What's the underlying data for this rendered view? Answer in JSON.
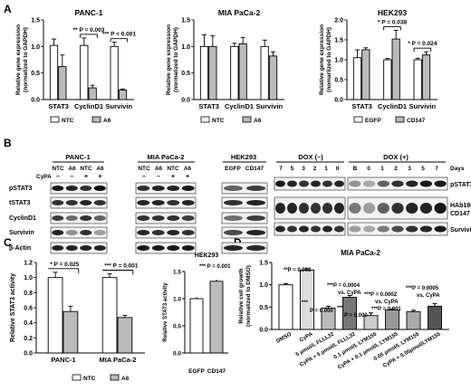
{
  "figure": {
    "panel_labels": [
      "A",
      "B",
      "C",
      "D"
    ]
  },
  "panelA": {
    "ylabel_lines": [
      "Relative gene expression",
      "(normalized to GAPDH)"
    ],
    "ylabel_lines_hek": [
      "Relative gene expression",
      "(nomarlized to GAPDH)"
    ],
    "charts": [
      {
        "title": "PANC-1",
        "categories": [
          "STAT3",
          "CyclinD1",
          "Survivin"
        ],
        "ylim": [
          0,
          1.5
        ],
        "yticks": [
          "0.0",
          "0.5",
          "1.0",
          "1.5"
        ],
        "legend": [
          "NTC",
          "A6"
        ],
        "legend_fills": [
          "#ffffff",
          "#bbbbbb"
        ],
        "series": [
          {
            "name": "NTC",
            "values": [
              1.02,
              1.02,
              1.0
            ],
            "errors": [
              0.12,
              0.14,
              0.08
            ],
            "fill": "#ffffff"
          },
          {
            "name": "A6",
            "values": [
              0.62,
              0.22,
              0.18
            ],
            "errors": [
              0.22,
              0.05,
              0.02
            ],
            "fill": "#bbbbbb"
          }
        ],
        "annotations": [
          {
            "stars": "**",
            "p": "P = 0.003",
            "cat": 1
          },
          {
            "stars": "***",
            "p": "P < 0.001",
            "cat": 2
          }
        ]
      },
      {
        "title": "MIA PaCa-2",
        "categories": [
          "STAT3",
          "CyclinD1",
          "Survivin"
        ],
        "ylim": [
          0,
          1.5
        ],
        "yticks": [
          "0.0",
          "0.5",
          "1.0",
          "1.5"
        ],
        "legend": [
          "NTC",
          "A6"
        ],
        "legend_fills": [
          "#ffffff",
          "#bbbbbb"
        ],
        "series": [
          {
            "name": "NTC",
            "values": [
              1.0,
              1.0,
              1.0
            ],
            "errors": [
              0.22,
              0.06,
              0.12
            ],
            "fill": "#ffffff"
          },
          {
            "name": "A6",
            "values": [
              1.0,
              1.05,
              0.82
            ],
            "errors": [
              0.2,
              0.12,
              0.08
            ],
            "fill": "#bbbbbb"
          }
        ],
        "annotations": []
      },
      {
        "title": "HEK293",
        "categories": [
          "STAT3",
          "CyclinD1",
          "Survivin"
        ],
        "ylim": [
          0,
          2.0
        ],
        "yticks": [
          "0.0",
          "0.5",
          "1.0",
          "1.5",
          "2.0"
        ],
        "legend": [
          "EGFP",
          "CD147"
        ],
        "legend_fills": [
          "#ffffff",
          "#bbbbbb"
        ],
        "series": [
          {
            "name": "EGFP",
            "values": [
              1.05,
              1.0,
              1.0
            ],
            "errors": [
              0.2,
              0.03,
              0.04
            ],
            "fill": "#ffffff"
          },
          {
            "name": "CD147",
            "values": [
              1.25,
              1.52,
              1.12
            ],
            "errors": [
              0.05,
              0.22,
              0.08
            ],
            "fill": "#bbbbbb"
          }
        ],
        "annotations": [
          {
            "stars": "*",
            "p": "P = 0.038",
            "cat": 1
          },
          {
            "stars": "*",
            "p": "P = 0.024",
            "cat": 2
          }
        ]
      }
    ]
  },
  "panelB": {
    "left_headers": [
      "PANC-1",
      "MIA PaCa-2",
      "HEK293"
    ],
    "lane_labels_panc": [
      "NTC",
      "A6",
      "NTC",
      "A6"
    ],
    "lane_labels_mia": [
      "NTC",
      "A6",
      "NTC",
      "A6"
    ],
    "cypa_label": "CyPA",
    "cypa_signs_panc": [
      "–",
      "–",
      "+",
      "+"
    ],
    "cypa_signs_mia": [
      "–",
      "–",
      "+",
      "+"
    ],
    "hek_lanes": [
      "EGFP",
      "CD147"
    ],
    "left_rows": [
      "pSTAT3",
      "tSTAT3",
      "CyclinD1",
      "Survivin",
      "β-Actin"
    ],
    "dox_neg": "DOX (–)",
    "dox_pos": "DOX (+)",
    "dox_neg_lanes": [
      "7",
      "5",
      "3",
      "2",
      "1",
      "0"
    ],
    "dox_pos_lanes": [
      "B",
      "0",
      "1",
      "2",
      "3",
      "5",
      "7"
    ],
    "days_label": "Days",
    "right_rows": [
      "pSTAT3",
      "HAb18G/",
      "CD147",
      "Survivin"
    ]
  },
  "panelC": {
    "ylabel": "Relative STAT3 activity",
    "chart_main": {
      "categories": [
        "PANC-1",
        "MIA PaCa-2"
      ],
      "ylim": [
        0,
        1.2
      ],
      "yticks": [
        "0.0",
        "0.2",
        "0.4",
        "0.6",
        "0.8",
        "1.0",
        "1.2"
      ],
      "legend": [
        "NTC",
        "A6"
      ],
      "legend_fills": [
        "#ffffff",
        "#bbbbbb"
      ],
      "series": [
        {
          "name": "NTC",
          "values": [
            1.0,
            1.0
          ],
          "errors": [
            0.07,
            0.05
          ],
          "fill": "#ffffff"
        },
        {
          "name": "A6",
          "values": [
            0.55,
            0.47
          ],
          "errors": [
            0.07,
            0.03
          ],
          "fill": "#bbbbbb"
        }
      ],
      "annotations": [
        {
          "stars": "*",
          "p": "P = 0.025"
        },
        {
          "stars": "***",
          "p": "P = 0.001"
        }
      ]
    },
    "chart_hek": {
      "title": "HEK293",
      "categories": [
        "EGFP",
        "CD147"
      ],
      "ylim": [
        0,
        1.5
      ],
      "yticks": [
        "0.0",
        "0.5",
        "1.0",
        "1.5"
      ],
      "values": [
        1.0,
        1.32
      ],
      "errors": [
        0.03,
        0.03
      ],
      "fills": [
        "#ffffff",
        "#bbbbbb"
      ],
      "annotation": "*** P = 0.001"
    }
  },
  "panelD": {
    "title": "MIA PaCa-2",
    "ylabel_lines": [
      "Relative cell growth",
      "(normalized to DMSO)"
    ],
    "ylim": [
      0,
      1.5
    ],
    "yticks": [
      "0.0",
      "0.5",
      "1.0",
      "1.5"
    ],
    "categories": [
      "DMSO",
      "CyPA",
      "5 μmol/L FLLL32",
      "CyPA + 5 μmol/L FLLL32",
      "0.1 μmol/L LYM155",
      "CyPA + 0.1 μmol/L LYM155",
      "0.05 μmol/L LYM155",
      "CyPA + 0.05μmol/LYM155"
    ],
    "values": [
      1.0,
      1.33,
      0.48,
      0.72,
      0.31,
      0.44,
      0.4,
      0.52
    ],
    "errors": [
      0.03,
      0.03,
      0.04,
      0.04,
      0.06,
      0.02,
      0.03,
      0.06
    ],
    "annotations": [
      {
        "text": "**P = 0.003"
      },
      {
        "text": "***"
      },
      {
        "text": "P = 0.000"
      },
      {
        "text": "***P = 0.0004"
      },
      {
        "text": "vs. CyPA"
      },
      {
        "text": "***"
      },
      {
        "text": "P = 0.000"
      },
      {
        "text": "***P = 0.0002"
      },
      {
        "text": "vs. CyPA"
      },
      {
        "text": "***P = 0.001"
      },
      {
        "text": "***P = 0.0005"
      },
      {
        "text": "vs. CyPA"
      }
    ]
  }
}
